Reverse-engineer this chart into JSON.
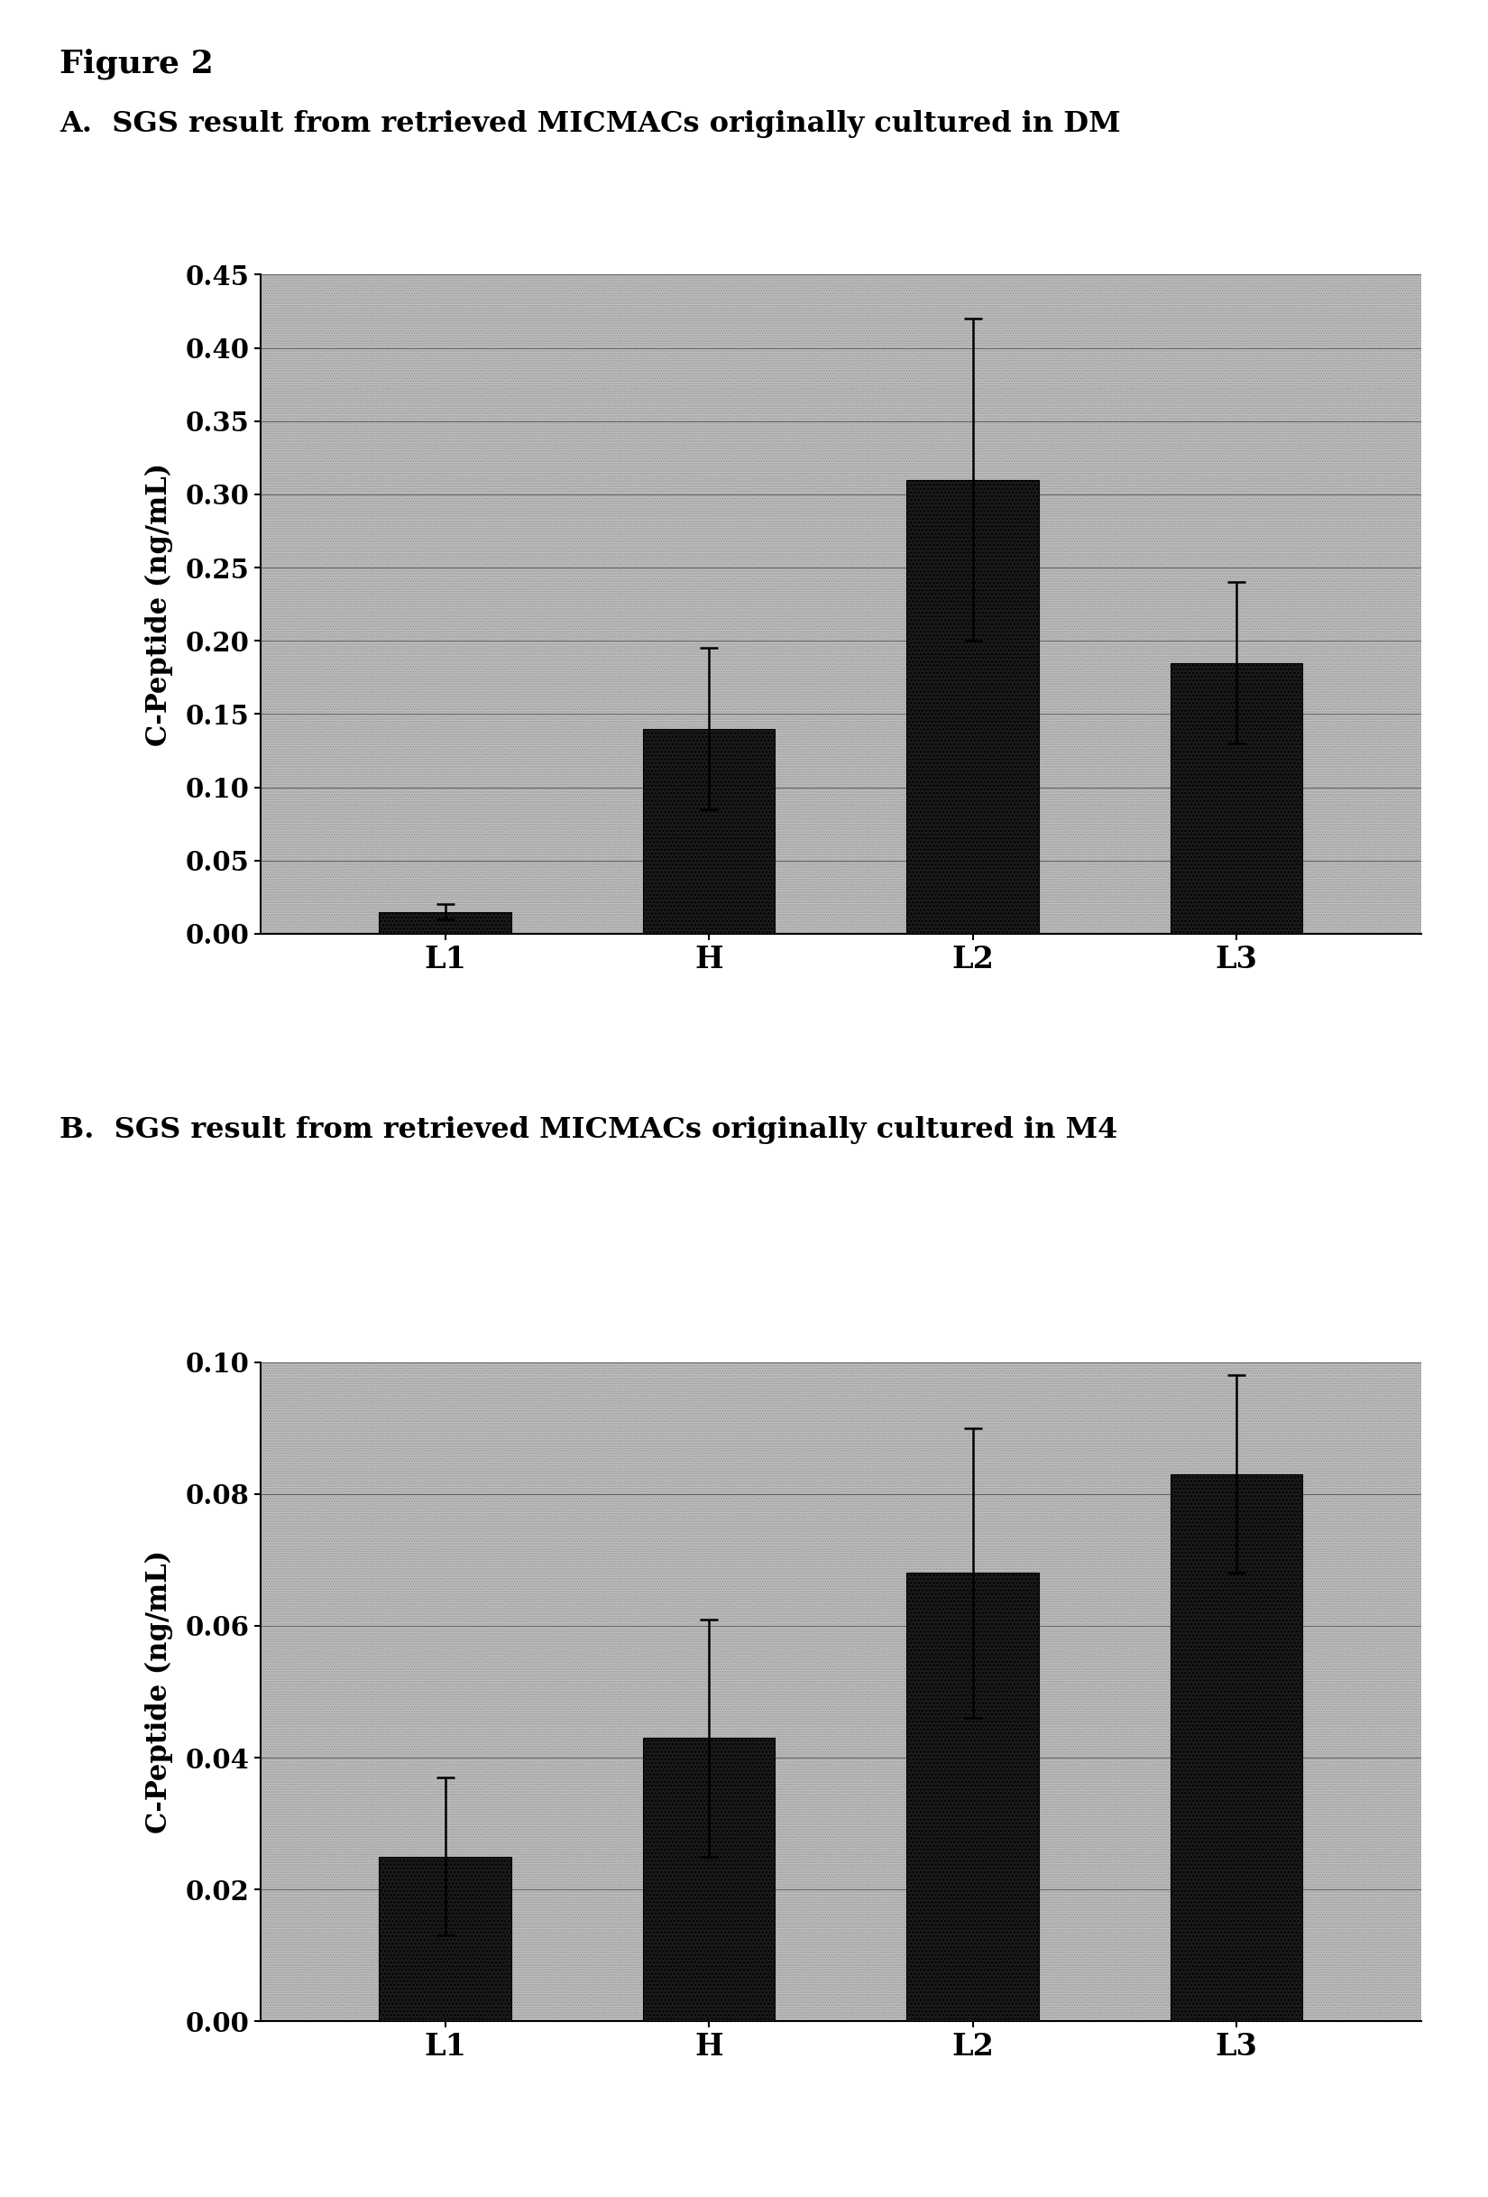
{
  "figure_label": "Figure 2",
  "panel_A_title": "A.  SGS result from retrieved MICMACs originally cultured in DM",
  "panel_B_title": "B.  SGS result from retrieved MICMACs originally cultured in M4",
  "categories": [
    "L1",
    "H",
    "L2",
    "L3"
  ],
  "panel_A": {
    "values": [
      0.015,
      0.14,
      0.31,
      0.185
    ],
    "errors": [
      0.005,
      0.055,
      0.11,
      0.055
    ],
    "ylim": [
      0.0,
      0.45
    ],
    "yticks": [
      0.0,
      0.05,
      0.1,
      0.15,
      0.2,
      0.25,
      0.3,
      0.35,
      0.4,
      0.45
    ]
  },
  "panel_B": {
    "values": [
      0.025,
      0.043,
      0.068,
      0.083
    ],
    "errors": [
      0.012,
      0.018,
      0.022,
      0.015
    ],
    "ylim": [
      0.0,
      0.1
    ],
    "yticks": [
      0.0,
      0.02,
      0.04,
      0.06,
      0.08,
      0.1
    ]
  },
  "ylabel": "C-Peptide (ng/mL)",
  "bar_color": "#2a2a2a",
  "figure_bg": "#ffffff"
}
